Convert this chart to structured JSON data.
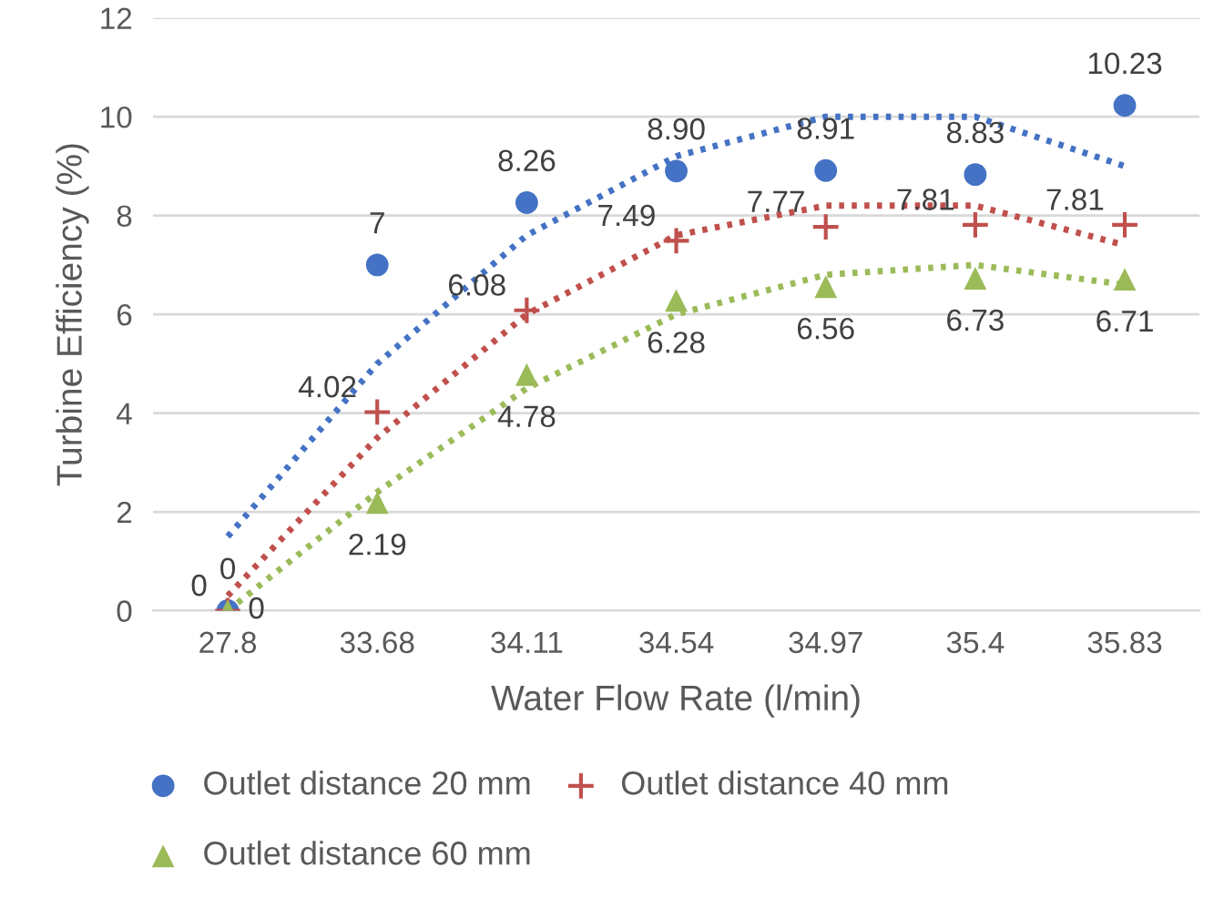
{
  "chart_data": {
    "type": "scatter",
    "xlabel": "Water Flow Rate (l/min)",
    "ylabel": "Turbine Efficiency (%)",
    "categories": [
      "27.8",
      "33.68",
      "34.11",
      "34.54",
      "34.97",
      "35.4",
      "35.83"
    ],
    "ylim": [
      0,
      12
    ],
    "yticks": [
      0,
      2,
      4,
      6,
      8,
      10,
      12
    ],
    "grid": "y",
    "legend": "bottom",
    "series": [
      {
        "name": "Outlet distance 20 mm",
        "marker": "circle",
        "color": "#4472c4",
        "values": [
          0,
          7,
          8.26,
          8.9,
          8.91,
          8.83,
          10.23
        ],
        "value_labels": [
          "0",
          "7",
          "8.26",
          "8.90",
          "8.91",
          "8.83",
          "10.23"
        ]
      },
      {
        "name": "Outlet distance 40 mm",
        "marker": "cross",
        "color": "#c0504d",
        "values": [
          0,
          4.02,
          6.08,
          7.49,
          7.77,
          7.81,
          7.81
        ],
        "value_labels": [
          "0",
          "4.02",
          "6.08",
          "7.49",
          "7.77",
          "7.81",
          "7.81"
        ]
      },
      {
        "name": "Outlet distance 60 mm",
        "marker": "triangle",
        "color": "#9bbb59",
        "values": [
          0,
          2.19,
          4.78,
          6.28,
          6.56,
          6.73,
          6.71
        ],
        "value_labels": [
          "0",
          "2.19",
          "4.78",
          "6.28",
          "6.56",
          "6.73",
          "6.71"
        ]
      },
      {
        "type": "line",
        "marker": "none",
        "line_style": "dotted",
        "color": "#4472c4",
        "values": [
          1.5,
          5.0,
          7.6,
          9.2,
          10.0,
          10.0,
          9.0
        ]
      },
      {
        "type": "line",
        "marker": "none",
        "line_style": "dotted",
        "color": "#c0504d",
        "values": [
          0.3,
          3.5,
          6.0,
          7.6,
          8.2,
          8.2,
          7.4
        ]
      },
      {
        "type": "line",
        "marker": "none",
        "line_style": "dotted",
        "color": "#9bbb59",
        "values": [
          0,
          2.4,
          4.5,
          6.0,
          6.8,
          7.0,
          6.6
        ]
      }
    ]
  }
}
